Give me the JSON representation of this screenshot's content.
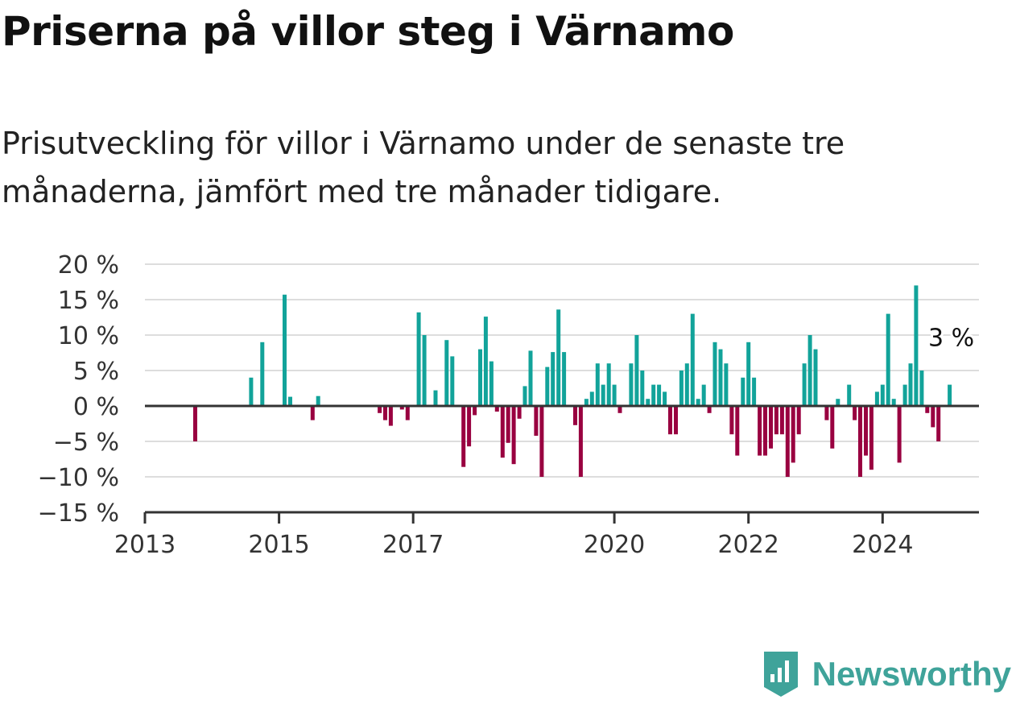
{
  "header": {
    "title": "Priserna på villor steg i Värnamo",
    "subtitle": "Prisutveckling för villor i Värnamo under de senaste tre månaderna, jämfört med tre månader tidigare."
  },
  "brand": {
    "name": "Newsworthy",
    "icon": "bar-chart-logo-icon"
  },
  "colors": {
    "positive": "#12a39a",
    "negative": "#990040",
    "grid": "#dddddd",
    "axis": "#333333"
  },
  "chart_data": {
    "type": "bar",
    "title": "Priserna på villor steg i Värnamo",
    "xlabel": "",
    "ylabel": "",
    "ylim": [
      -15,
      20
    ],
    "y_ticks": [
      20,
      15,
      10,
      5,
      0,
      -5,
      -10,
      -15
    ],
    "y_tick_labels": [
      "20 %",
      "15 %",
      "10 %",
      "5 %",
      "0 %",
      "−5 %",
      "−10 %",
      "−15 %"
    ],
    "x_tick_labels": [
      {
        "label": "2013",
        "date": "2013-01"
      },
      {
        "label": "2015",
        "date": "2015-01"
      },
      {
        "label": "2017",
        "date": "2017-01"
      },
      {
        "label": "2020",
        "date": "2020-01"
      },
      {
        "label": "2022",
        "date": "2022-01"
      },
      {
        "label": "2024",
        "date": "2024-01"
      }
    ],
    "annotation": {
      "text": "3 %",
      "date": "2025-01"
    },
    "series": [
      {
        "points": [
          {
            "date": "2013-10",
            "value": -5
          },
          {
            "date": "2014-08",
            "value": 4
          },
          {
            "date": "2014-10",
            "value": 9
          },
          {
            "date": "2015-02",
            "value": 15.7
          },
          {
            "date": "2015-03",
            "value": 1.3
          },
          {
            "date": "2015-07",
            "value": -2
          },
          {
            "date": "2015-08",
            "value": 1.4
          },
          {
            "date": "2016-07",
            "value": -1
          },
          {
            "date": "2016-08",
            "value": -2
          },
          {
            "date": "2016-09",
            "value": -2.8
          },
          {
            "date": "2016-11",
            "value": -0.5
          },
          {
            "date": "2016-12",
            "value": -2
          },
          {
            "date": "2017-02",
            "value": 13.2
          },
          {
            "date": "2017-03",
            "value": 10
          },
          {
            "date": "2017-05",
            "value": 2.2
          },
          {
            "date": "2017-07",
            "value": 9.3
          },
          {
            "date": "2017-08",
            "value": 7
          },
          {
            "date": "2017-10",
            "value": -8.6
          },
          {
            "date": "2017-11",
            "value": -5.7
          },
          {
            "date": "2017-12",
            "value": -1.3
          },
          {
            "date": "2018-01",
            "value": 8
          },
          {
            "date": "2018-02",
            "value": 12.6
          },
          {
            "date": "2018-03",
            "value": 6.3
          },
          {
            "date": "2018-04",
            "value": -0.8
          },
          {
            "date": "2018-05",
            "value": -7.3
          },
          {
            "date": "2018-06",
            "value": -5.2
          },
          {
            "date": "2018-07",
            "value": -8.2
          },
          {
            "date": "2018-08",
            "value": -1.8
          },
          {
            "date": "2018-09",
            "value": 2.8
          },
          {
            "date": "2018-10",
            "value": 7.8
          },
          {
            "date": "2018-11",
            "value": -4.2
          },
          {
            "date": "2018-12",
            "value": -10
          },
          {
            "date": "2019-01",
            "value": 5.5
          },
          {
            "date": "2019-02",
            "value": 7.6
          },
          {
            "date": "2019-03",
            "value": 13.6
          },
          {
            "date": "2019-04",
            "value": 7.6
          },
          {
            "date": "2019-06",
            "value": -2.7
          },
          {
            "date": "2019-07",
            "value": -10
          },
          {
            "date": "2019-08",
            "value": 1
          },
          {
            "date": "2019-09",
            "value": 2
          },
          {
            "date": "2019-10",
            "value": 6
          },
          {
            "date": "2019-11",
            "value": 3
          },
          {
            "date": "2019-12",
            "value": 6
          },
          {
            "date": "2020-01",
            "value": 3
          },
          {
            "date": "2020-02",
            "value": -1
          },
          {
            "date": "2020-04",
            "value": 6
          },
          {
            "date": "2020-05",
            "value": 10
          },
          {
            "date": "2020-06",
            "value": 5
          },
          {
            "date": "2020-07",
            "value": 1
          },
          {
            "date": "2020-08",
            "value": 3
          },
          {
            "date": "2020-09",
            "value": 3
          },
          {
            "date": "2020-10",
            "value": 2
          },
          {
            "date": "2020-11",
            "value": -4
          },
          {
            "date": "2020-12",
            "value": -4
          },
          {
            "date": "2021-01",
            "value": 5
          },
          {
            "date": "2021-02",
            "value": 6
          },
          {
            "date": "2021-03",
            "value": 13
          },
          {
            "date": "2021-04",
            "value": 1
          },
          {
            "date": "2021-05",
            "value": 3
          },
          {
            "date": "2021-06",
            "value": -1
          },
          {
            "date": "2021-07",
            "value": 9
          },
          {
            "date": "2021-08",
            "value": 8
          },
          {
            "date": "2021-09",
            "value": 6
          },
          {
            "date": "2021-10",
            "value": -4
          },
          {
            "date": "2021-11",
            "value": -7
          },
          {
            "date": "2021-12",
            "value": 4
          },
          {
            "date": "2022-01",
            "value": 9
          },
          {
            "date": "2022-02",
            "value": 4
          },
          {
            "date": "2022-03",
            "value": -7
          },
          {
            "date": "2022-04",
            "value": -7
          },
          {
            "date": "2022-05",
            "value": -6
          },
          {
            "date": "2022-06",
            "value": -4
          },
          {
            "date": "2022-07",
            "value": -4
          },
          {
            "date": "2022-08",
            "value": -10
          },
          {
            "date": "2022-09",
            "value": -8
          },
          {
            "date": "2022-10",
            "value": -4
          },
          {
            "date": "2022-11",
            "value": 6
          },
          {
            "date": "2022-12",
            "value": 10
          },
          {
            "date": "2023-01",
            "value": 8
          },
          {
            "date": "2023-03",
            "value": -2
          },
          {
            "date": "2023-04",
            "value": -6
          },
          {
            "date": "2023-05",
            "value": 1
          },
          {
            "date": "2023-07",
            "value": 3
          },
          {
            "date": "2023-08",
            "value": -2
          },
          {
            "date": "2023-09",
            "value": -10
          },
          {
            "date": "2023-10",
            "value": -7
          },
          {
            "date": "2023-11",
            "value": -9
          },
          {
            "date": "2023-12",
            "value": 2
          },
          {
            "date": "2024-01",
            "value": 3
          },
          {
            "date": "2024-02",
            "value": 13
          },
          {
            "date": "2024-03",
            "value": 1
          },
          {
            "date": "2024-04",
            "value": -8
          },
          {
            "date": "2024-05",
            "value": 3
          },
          {
            "date": "2024-06",
            "value": 6
          },
          {
            "date": "2024-07",
            "value": 17
          },
          {
            "date": "2024-08",
            "value": 5
          },
          {
            "date": "2024-09",
            "value": -1
          },
          {
            "date": "2024-10",
            "value": -3
          },
          {
            "date": "2024-11",
            "value": -5
          },
          {
            "date": "2025-01",
            "value": 3
          }
        ]
      }
    ]
  }
}
